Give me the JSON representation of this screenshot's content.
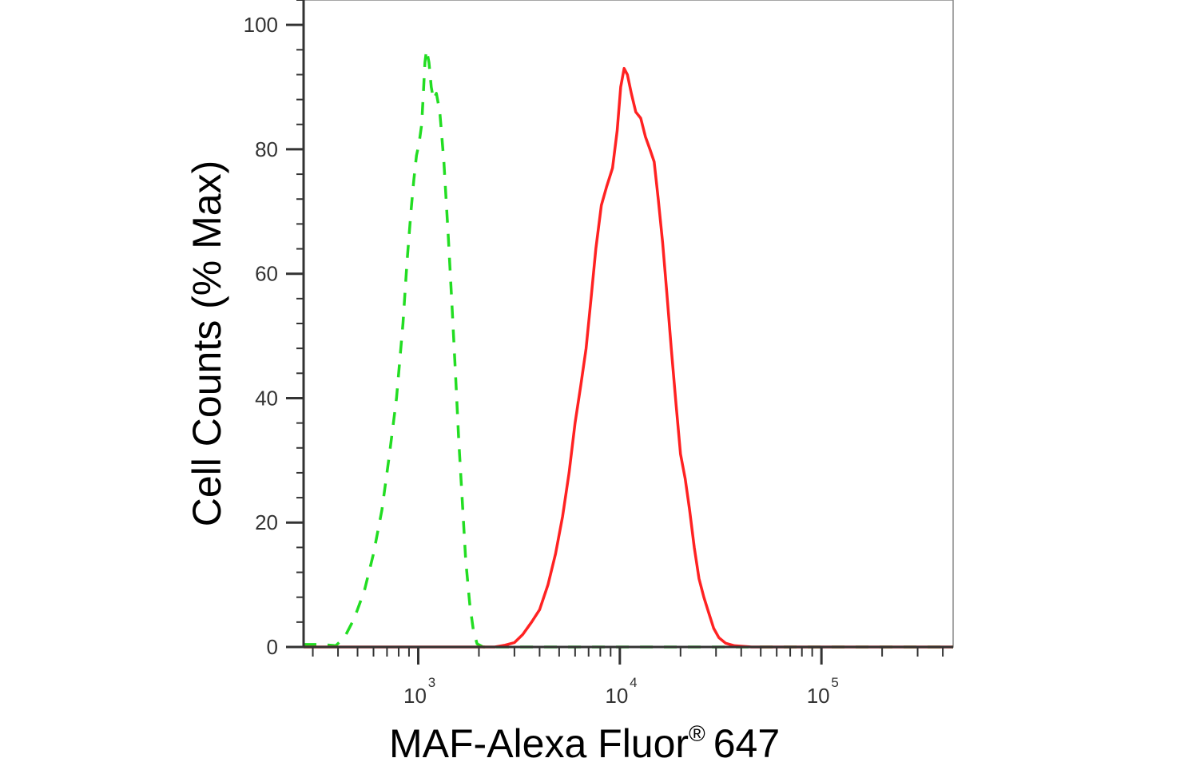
{
  "chart_data": {
    "type": "line",
    "xlabel": "MAF-Alexa Fluor",
    "xlabel_sup": "®",
    "xlabel_suffix": "647",
    "ylabel": "Cell Counts (% Max)",
    "x_scale": "log",
    "xlim": [
      270,
      450000
    ],
    "ylim": [
      0,
      104
    ],
    "y_ticks": [
      0,
      20,
      40,
      60,
      80,
      100
    ],
    "x_ticks": [
      {
        "value": 1000,
        "base": "10",
        "exp": "3"
      },
      {
        "value": 10000,
        "base": "10",
        "exp": "4"
      },
      {
        "value": 100000,
        "base": "10",
        "exp": "5"
      }
    ],
    "grid": false,
    "series": [
      {
        "color": "#22dd22",
        "dash": "dashed",
        "points": [
          [
            270,
            0.4
          ],
          [
            330,
            0.4
          ],
          [
            390,
            0.2
          ],
          [
            430,
            1.5
          ],
          [
            480,
            4.5
          ],
          [
            540,
            9
          ],
          [
            600,
            15
          ],
          [
            660,
            22
          ],
          [
            720,
            31
          ],
          [
            780,
            40
          ],
          [
            840,
            52
          ],
          [
            880,
            62
          ],
          [
            920,
            70
          ],
          [
            950,
            75
          ],
          [
            980,
            79
          ],
          [
            1010,
            81
          ],
          [
            1040,
            84
          ],
          [
            1060,
            89
          ],
          [
            1080,
            94
          ],
          [
            1100,
            96
          ],
          [
            1130,
            94
          ],
          [
            1160,
            90
          ],
          [
            1190,
            88
          ],
          [
            1230,
            89
          ],
          [
            1280,
            86
          ],
          [
            1340,
            78
          ],
          [
            1410,
            66
          ],
          [
            1470,
            55
          ],
          [
            1530,
            44
          ],
          [
            1590,
            33
          ],
          [
            1650,
            24
          ],
          [
            1720,
            14
          ],
          [
            1800,
            7
          ],
          [
            1880,
            2.5
          ],
          [
            1960,
            0.5
          ],
          [
            2100,
            0
          ],
          [
            3000,
            0
          ],
          [
            10000,
            0
          ],
          [
            100000,
            0
          ],
          [
            450000,
            0
          ]
        ]
      },
      {
        "color": "#ff2222",
        "dash": "solid",
        "points": [
          [
            270,
            0
          ],
          [
            2400,
            0
          ],
          [
            2700,
            0.3
          ],
          [
            3000,
            0.7
          ],
          [
            3300,
            2
          ],
          [
            3650,
            4
          ],
          [
            4000,
            6
          ],
          [
            4400,
            10
          ],
          [
            4800,
            15
          ],
          [
            5200,
            21
          ],
          [
            5600,
            28
          ],
          [
            6000,
            36
          ],
          [
            6400,
            42
          ],
          [
            6800,
            48
          ],
          [
            7200,
            56
          ],
          [
            7600,
            64
          ],
          [
            8100,
            71
          ],
          [
            8600,
            74
          ],
          [
            9200,
            77
          ],
          [
            9700,
            83
          ],
          [
            10100,
            90
          ],
          [
            10500,
            93
          ],
          [
            10900,
            92
          ],
          [
            11400,
            89
          ],
          [
            12000,
            86
          ],
          [
            12700,
            85
          ],
          [
            13400,
            82
          ],
          [
            14100,
            80
          ],
          [
            14800,
            78
          ],
          [
            15500,
            72
          ],
          [
            16300,
            65
          ],
          [
            17100,
            57
          ],
          [
            18000,
            48
          ],
          [
            19000,
            39
          ],
          [
            20000,
            31
          ],
          [
            21100,
            27
          ],
          [
            22200,
            22
          ],
          [
            23400,
            16
          ],
          [
            24700,
            11
          ],
          [
            26100,
            8
          ],
          [
            27600,
            5.5
          ],
          [
            29200,
            3
          ],
          [
            31000,
            1.5
          ],
          [
            33500,
            0.6
          ],
          [
            37000,
            0.2
          ],
          [
            45000,
            0
          ],
          [
            100000,
            0
          ],
          [
            450000,
            0
          ]
        ]
      }
    ]
  }
}
